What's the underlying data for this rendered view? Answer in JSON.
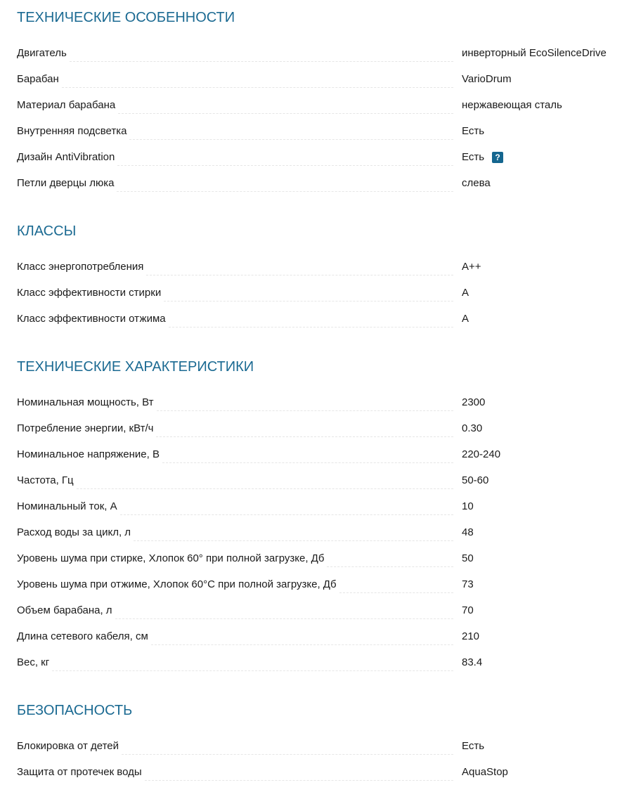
{
  "sections": [
    {
      "title": "ТЕХНИЧЕСКИЕ ОСОБЕННОСТИ",
      "rows": [
        {
          "label": "Двигатель",
          "value": "инверторный EcoSilenceDrive"
        },
        {
          "label": "Барабан",
          "value": "VarioDrum"
        },
        {
          "label": "Материал барабана",
          "value": "нержавеющая сталь"
        },
        {
          "label": "Внутренняя подсветка",
          "value": "Есть"
        },
        {
          "label": "Дизайн AntiVibration",
          "value": "Есть",
          "help": "?"
        },
        {
          "label": "Петли дверцы люка",
          "value": "слева"
        }
      ]
    },
    {
      "title": "КЛАССЫ",
      "rows": [
        {
          "label": "Класс энергопотребления",
          "value": "A++"
        },
        {
          "label": "Класс эффективности стирки",
          "value": "A"
        },
        {
          "label": "Класс эффективности отжима",
          "value": "A"
        }
      ]
    },
    {
      "title": "ТЕХНИЧЕСКИЕ ХАРАКТЕРИСТИКИ",
      "rows": [
        {
          "label": "Номинальная мощность, Вт",
          "value": "2300"
        },
        {
          "label": "Потребление энергии, кВт/ч",
          "value": "0.30"
        },
        {
          "label": "Номинальное напряжение, В",
          "value": "220-240"
        },
        {
          "label": "Частота, Гц",
          "value": "50-60"
        },
        {
          "label": "Номинальный ток, А",
          "value": "10"
        },
        {
          "label": "Расход воды за цикл, л",
          "value": "48"
        },
        {
          "label": "Уровень шума при стирке, Хлопок 60° при полной загрузке, Дб",
          "value": "50"
        },
        {
          "label": "Уровень шума при отжиме, Хлопок 60°C при полной загрузке, Дб",
          "value": "73"
        },
        {
          "label": "Объем барабана, л",
          "value": "70"
        },
        {
          "label": "Длина сетевого кабеля, см",
          "value": "210"
        },
        {
          "label": "Вес, кг",
          "value": "83.4"
        }
      ]
    },
    {
      "title": "БЕЗОПАСНОСТЬ",
      "rows": [
        {
          "label": "Блокировка от детей",
          "value": "Есть"
        },
        {
          "label": "Защита от протечек воды",
          "value": "AquaStop"
        }
      ]
    }
  ],
  "colors": {
    "heading": "#1b6a92",
    "help_badge": "#14668f"
  }
}
